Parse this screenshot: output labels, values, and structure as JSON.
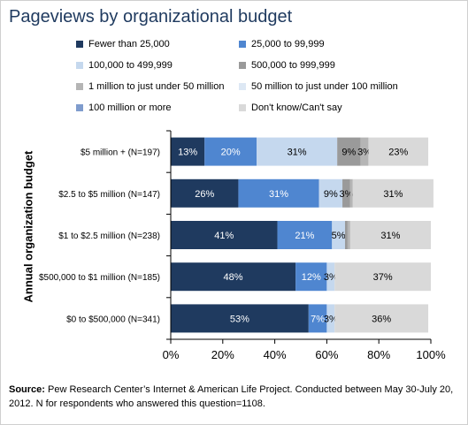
{
  "title": "Pageviews by organizational budget",
  "source": {
    "label": "Source:",
    "text": " Pew Research Center’s Internet & American Life Project. Conducted between May 30-July 20, 2012. N for respondents who answered this question=1108."
  },
  "chart_data": {
    "type": "bar",
    "orientation": "horizontal",
    "stacked": true,
    "title": "Pageviews by organizational budget",
    "ylabel": "Annual organization budget",
    "xlim": [
      0,
      100
    ],
    "x_ticks": [
      "0%",
      "20%",
      "40%",
      "60%",
      "80%",
      "100%"
    ],
    "legend_position": "top",
    "categories": [
      "$5 million + (N=197)",
      "$2.5 to $5 million (N=147)",
      "$1 to $2.5 million (N=238)",
      "$500,000 to $1 million (N=185)",
      "$0 to $500,000 (N=341)"
    ],
    "series": [
      {
        "name": "Fewer than 25,000",
        "color": "#1f3a5f",
        "label_color": "#ffffff",
        "values": [
          13,
          26,
          41,
          48,
          53
        ]
      },
      {
        "name": "25,000 to 99,999",
        "color": "#4f86d0",
        "label_color": "#ffffff",
        "values": [
          20,
          31,
          21,
          12,
          7
        ]
      },
      {
        "name": "100,000 to 499,999",
        "color": "#c5d8ee",
        "label_color": "#000000",
        "values": [
          31,
          9,
          5,
          3,
          3
        ]
      },
      {
        "name": "500,000 to 999,999",
        "color": "#9a9a9a",
        "label_color": "#000000",
        "values": [
          9,
          3,
          1,
          0,
          0
        ]
      },
      {
        "name": "1 million to just under 50 million",
        "color": "#b5b5b5",
        "label_color": "#000000",
        "values": [
          3,
          1,
          1,
          0,
          0
        ]
      },
      {
        "name": "50 million to just under 100 million",
        "color": "#dde8f4",
        "label_color": "#000000",
        "values": [
          0,
          0,
          0,
          0,
          0
        ]
      },
      {
        "name": "100 million or more",
        "color": "#7f9ccd",
        "label_color": "#000000",
        "values": [
          0,
          0,
          0,
          0,
          0
        ]
      },
      {
        "name": "Don't know/Can't say",
        "color": "#d9d9d9",
        "label_color": "#000000",
        "values": [
          23,
          31,
          31,
          37,
          36
        ]
      }
    ],
    "data_labels": [
      [
        "13%",
        "20%",
        "31%",
        "9%",
        "3%",
        "",
        "",
        "23%"
      ],
      [
        "26%",
        "31%",
        "9%",
        "3%",
        "",
        "",
        "",
        "31%"
      ],
      [
        "41%",
        "21%",
        "5%",
        "",
        "",
        "",
        "",
        "31%"
      ],
      [
        "48%",
        "12%",
        "3%",
        "",
        "",
        "",
        "",
        "37%"
      ],
      [
        "53%",
        "7%",
        "3%",
        "",
        "",
        "",
        "",
        "36%"
      ]
    ]
  }
}
